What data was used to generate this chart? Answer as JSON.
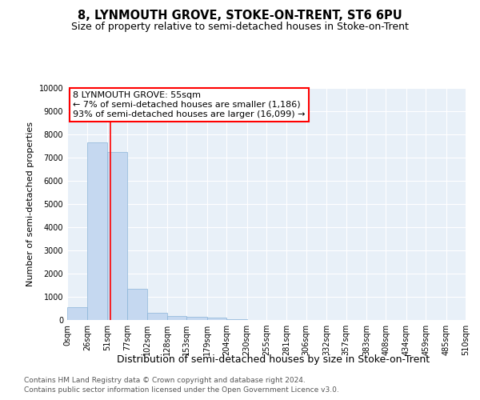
{
  "title": "8, LYNMOUTH GROVE, STOKE-ON-TRENT, ST6 6PU",
  "subtitle": "Size of property relative to semi-detached houses in Stoke-on-Trent",
  "xlabel": "Distribution of semi-detached houses by size in Stoke-on-Trent",
  "ylabel": "Number of semi-detached properties",
  "footer1": "Contains HM Land Registry data © Crown copyright and database right 2024.",
  "footer2": "Contains public sector information licensed under the Open Government Licence v3.0.",
  "bin_edges": [
    0,
    26,
    51,
    77,
    102,
    128,
    153,
    179,
    204,
    230,
    255,
    281,
    306,
    332,
    357,
    383,
    408,
    434,
    459,
    485,
    510
  ],
  "bar_values": [
    550,
    7650,
    7250,
    1350,
    325,
    175,
    125,
    100,
    40,
    15,
    10,
    5,
    3,
    2,
    1,
    1,
    0,
    0,
    0,
    0
  ],
  "bar_color": "#c5d8f0",
  "bar_edge_color": "#8ab4d8",
  "vline_x": 55,
  "vline_color": "red",
  "annotation_line1": "8 LYNMOUTH GROVE: 55sqm",
  "annotation_line2": "← 7% of semi-detached houses are smaller (1,186)",
  "annotation_line3": "93% of semi-detached houses are larger (16,099) →",
  "annotation_box_edgecolor": "red",
  "annotation_box_facecolor": "white",
  "ylim_max": 10000,
  "yticks": [
    0,
    1000,
    2000,
    3000,
    4000,
    5000,
    6000,
    7000,
    8000,
    9000,
    10000
  ],
  "background_color": "#e8f0f8",
  "grid_color": "white",
  "title_fontsize": 10.5,
  "subtitle_fontsize": 9,
  "ylabel_fontsize": 8,
  "xlabel_fontsize": 9,
  "tick_fontsize": 7,
  "annot_fontsize": 8,
  "footer_fontsize": 6.5
}
